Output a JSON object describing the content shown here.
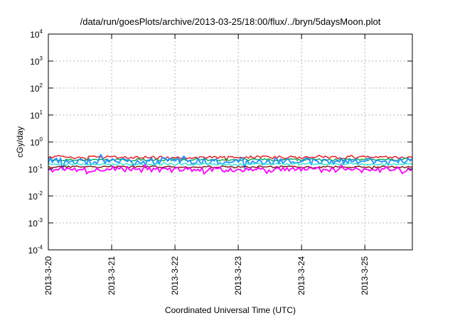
{
  "chart_data": {
    "type": "line",
    "title": "/data/run/goesPlots/archive/2013-03-25/18:00/flux/../bryn/5daysMoon.plot",
    "xlabel": "Coordinated Universal Time (UTC)",
    "ylabel": "cGy/day",
    "y_scale": "log",
    "ylim": [
      0.0001,
      10000
    ],
    "xlim": [
      "2013-03-20",
      "2013-03-25T18:00"
    ],
    "x_ticks": [
      "2013-3-20",
      "2013-3-21",
      "2013-3-22",
      "2013-3-23",
      "2013-3-24",
      "2013-3-25"
    ],
    "y_ticks": [
      {
        "base": "10",
        "exp": "-4"
      },
      {
        "base": "10",
        "exp": "-3"
      },
      {
        "base": "10",
        "exp": "-2"
      },
      {
        "base": "10",
        "exp": "-1"
      },
      {
        "base": "10",
        "exp": "0"
      },
      {
        "base": "10",
        "exp": "1"
      },
      {
        "base": "10",
        "exp": "2"
      },
      {
        "base": "10",
        "exp": "3"
      },
      {
        "base": "10",
        "exp": "4"
      }
    ],
    "grid": true,
    "series": [
      {
        "color": "#e8141c",
        "baseline": 0.27,
        "spread": 0.12
      },
      {
        "color": "#00a651",
        "baseline": 0.22,
        "spread": 0.1
      },
      {
        "color": "#1e90ff",
        "baseline": 0.2,
        "spread": 0.3
      },
      {
        "color": "#2ee6d0",
        "baseline": 0.15,
        "spread": 0.08
      },
      {
        "color": "#7a1010",
        "baseline": 0.12,
        "spread": 0.08
      },
      {
        "color": "#ff00ff",
        "baseline": 0.095,
        "spread": 0.22
      }
    ]
  }
}
